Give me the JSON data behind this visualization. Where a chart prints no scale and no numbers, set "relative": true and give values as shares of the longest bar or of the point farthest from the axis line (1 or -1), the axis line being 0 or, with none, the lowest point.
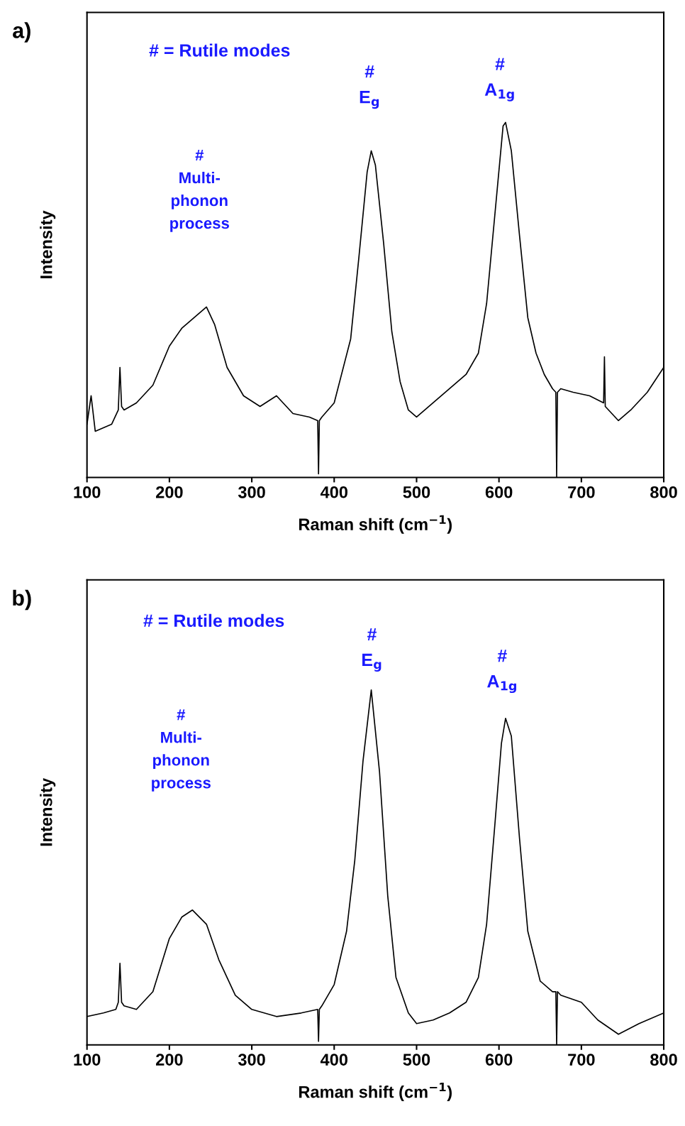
{
  "chart_data": [
    {
      "type": "line",
      "title": "a)",
      "xlabel": "Raman shift (cm$^{−1}$)",
      "ylabel": "Intensity",
      "relative": true,
      "tick_labels": "x",
      "grid": false,
      "marker": "none",
      "line_style": "solid",
      "xlim": [
        100,
        800
      ],
      "xticks": [
        100,
        200,
        300,
        400,
        500,
        600,
        700,
        800
      ],
      "annotations": [
        "# = Rutile modes",
        "#\nE$_{g}$",
        "#\nA$_{1g}$",
        "#\nMulti-\nphonon\nprocess"
      ],
      "series": [
        {
          "color": "#000000",
          "x": [
            100,
            105,
            110,
            120,
            130,
            138,
            140,
            142,
            145,
            160,
            180,
            200,
            215,
            230,
            245,
            255,
            270,
            290,
            310,
            330,
            350,
            370,
            380,
            381,
            382,
            385,
            400,
            420,
            430,
            440,
            445,
            450,
            460,
            470,
            480,
            490,
            500,
            520,
            540,
            560,
            575,
            585,
            595,
            605,
            608,
            615,
            625,
            635,
            645,
            655,
            665,
            669,
            670,
            671,
            675,
            690,
            710,
            727,
            728,
            729,
            745,
            760,
            780,
            800
          ],
          "values": [
            0.15,
            0.23,
            0.13,
            0.14,
            0.15,
            0.19,
            0.31,
            0.2,
            0.19,
            0.21,
            0.26,
            0.37,
            0.42,
            0.45,
            0.48,
            0.43,
            0.31,
            0.23,
            0.2,
            0.23,
            0.18,
            0.17,
            0.16,
            0.01,
            0.16,
            0.17,
            0.21,
            0.39,
            0.62,
            0.86,
            0.92,
            0.88,
            0.66,
            0.41,
            0.27,
            0.19,
            0.17,
            0.21,
            0.25,
            0.29,
            0.35,
            0.49,
            0.74,
            0.99,
            1.0,
            0.92,
            0.68,
            0.45,
            0.35,
            0.29,
            0.25,
            0.24,
            0.0,
            0.24,
            0.25,
            0.24,
            0.23,
            0.21,
            0.34,
            0.2,
            0.16,
            0.19,
            0.24,
            0.31
          ]
        }
      ]
    },
    {
      "type": "line",
      "title": "b)",
      "xlabel": "Raman shift (cm$^{−1}$)",
      "ylabel": "Intensity",
      "relative": true,
      "tick_labels": "x",
      "grid": false,
      "marker": "none",
      "line_style": "solid",
      "xlim": [
        100,
        800
      ],
      "xticks": [
        100,
        200,
        300,
        400,
        500,
        600,
        700,
        800
      ],
      "annotations": [
        "# = Rutile modes",
        "#\nE$_{g}$",
        "#\nA$_{1g}$",
        "#\nMulti-\nphonon\nprocess"
      ],
      "series": [
        {
          "color": "#000000",
          "x": [
            100,
            120,
            135,
            138,
            140,
            142,
            145,
            160,
            180,
            200,
            215,
            228,
            245,
            260,
            280,
            300,
            330,
            360,
            380,
            381,
            382,
            385,
            400,
            415,
            425,
            435,
            445,
            455,
            465,
            475,
            490,
            500,
            520,
            540,
            560,
            575,
            585,
            595,
            603,
            608,
            615,
            625,
            635,
            650,
            665,
            669,
            670,
            671,
            675,
            700,
            720,
            745,
            770,
            800
          ],
          "values": [
            0.08,
            0.09,
            0.1,
            0.12,
            0.23,
            0.12,
            0.11,
            0.1,
            0.15,
            0.3,
            0.36,
            0.38,
            0.34,
            0.24,
            0.14,
            0.1,
            0.08,
            0.09,
            0.1,
            0.01,
            0.1,
            0.11,
            0.17,
            0.32,
            0.52,
            0.8,
            1.0,
            0.77,
            0.42,
            0.19,
            0.09,
            0.06,
            0.07,
            0.09,
            0.12,
            0.19,
            0.34,
            0.62,
            0.85,
            0.92,
            0.87,
            0.58,
            0.32,
            0.18,
            0.15,
            0.15,
            0.0,
            0.15,
            0.14,
            0.12,
            0.07,
            0.03,
            0.06,
            0.09
          ]
        }
      ]
    }
  ]
}
